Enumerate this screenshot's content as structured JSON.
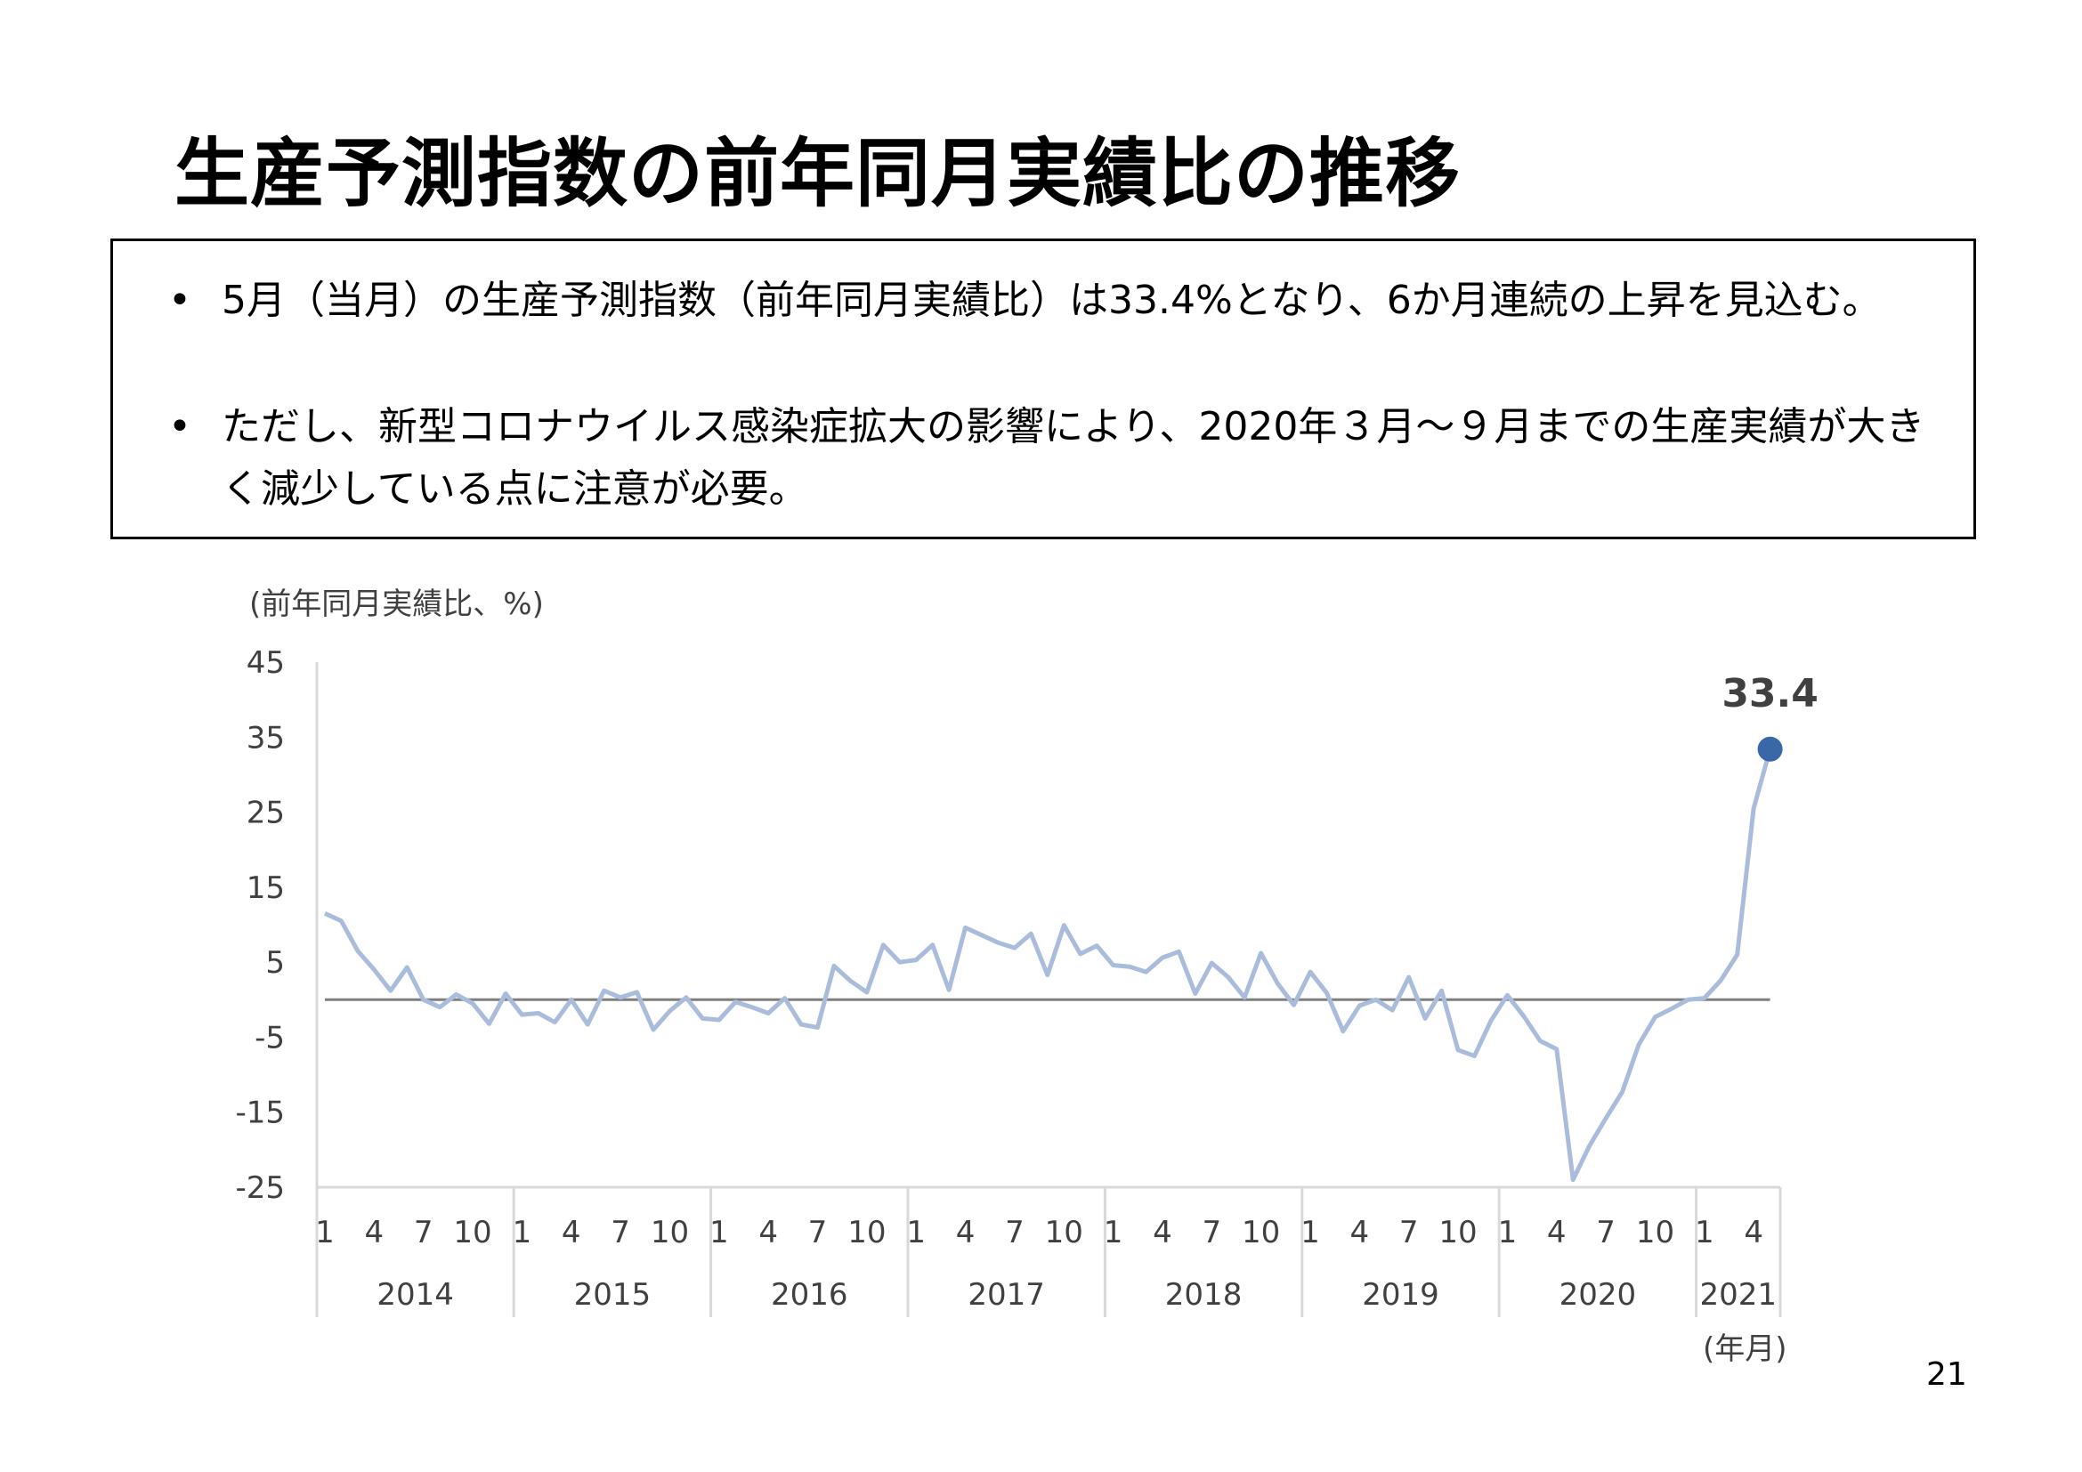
{
  "page": {
    "title": "生産予測指数の前年同月実績比の推移",
    "bullets": [
      "5月（当月）の生産予測指数（前年同月実績比）は33.4%となり、6か月連続の上昇を見込む。",
      "ただし、新型コロナウイルス感染症拡大の影響により、2020年３月～９月までの生産実績が大きく減少している点に注意が必要。"
    ],
    "bullet_mark": "•",
    "page_number": "21"
  },
  "colors": {
    "series_line": "#a9bcdc",
    "last_point": "#3a67a8",
    "zero_line": "#7f7f7f",
    "axis": "#d9d9d9",
    "text": "#404040"
  },
  "chart_data": {
    "type": "line",
    "title": "",
    "ylabel": "(前年同月実績比、%)",
    "xlabel": "(年月)",
    "ylim": [
      -25,
      45
    ],
    "yticks": [
      45,
      35,
      25,
      15,
      5,
      -5,
      -15,
      -25
    ],
    "grid": false,
    "reference_line": 0,
    "years": [
      {
        "label": "2014",
        "months": [
          "1",
          "4",
          "7",
          "10"
        ]
      },
      {
        "label": "2015",
        "months": [
          "1",
          "4",
          "7",
          "10"
        ]
      },
      {
        "label": "2016",
        "months": [
          "1",
          "4",
          "7",
          "10"
        ]
      },
      {
        "label": "2017",
        "months": [
          "1",
          "4",
          "7",
          "10"
        ]
      },
      {
        "label": "2018",
        "months": [
          "1",
          "4",
          "7",
          "10"
        ]
      },
      {
        "label": "2019",
        "months": [
          "1",
          "4",
          "7",
          "10"
        ]
      },
      {
        "label": "2020",
        "months": [
          "1",
          "4",
          "7",
          "10"
        ]
      },
      {
        "label": "2021",
        "months": [
          "1",
          "4"
        ]
      }
    ],
    "series": [
      {
        "values": [
          11.5,
          10.5,
          6.5,
          4.0,
          1.2,
          4.3,
          0.0,
          -1.0,
          0.7,
          -0.5,
          -3.2,
          0.8,
          -2.0,
          -1.8,
          -3.0,
          0.0,
          -3.3,
          1.2,
          0.3,
          1.0,
          -4.0,
          -1.5,
          0.3,
          -2.5,
          -2.7,
          -0.3,
          -1.0,
          -1.8,
          0.2,
          -3.3,
          -3.7,
          4.5,
          2.5,
          1.0,
          7.3,
          5.0,
          5.3,
          7.3,
          1.3,
          9.6,
          8.6,
          7.6,
          6.9,
          8.8,
          3.3,
          9.9,
          6.1,
          7.2,
          4.6,
          4.4,
          3.7,
          5.6,
          6.4,
          0.8,
          4.9,
          3.0,
          0.3,
          6.2,
          2.2,
          -0.7,
          3.7,
          0.9,
          -4.2,
          -0.8,
          0.0,
          -1.4,
          3.0,
          -2.5,
          1.2,
          -6.7,
          -7.5,
          -2.8,
          0.6,
          -2.2,
          -5.5,
          -6.6,
          -24.0,
          -19.5,
          -15.8,
          -12.3,
          -6.0,
          -2.3,
          -1.2,
          0.0,
          0.2,
          2.6,
          6.0,
          25.5,
          33.4
        ],
        "last_value_label": "33.4"
      }
    ]
  }
}
